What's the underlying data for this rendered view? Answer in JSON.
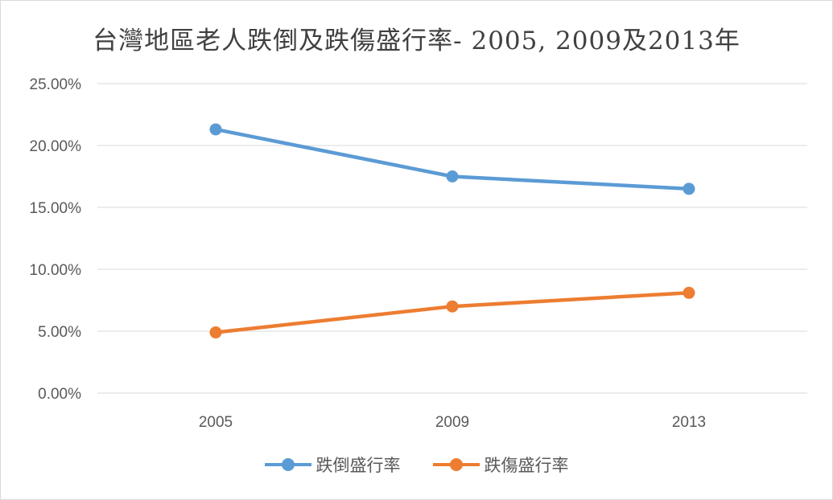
{
  "chart_data": {
    "type": "line",
    "title": "台灣地區老人跌倒及跌傷盛行率- 2005, 2009及2013年",
    "categories": [
      "2005",
      "2009",
      "2013"
    ],
    "series": [
      {
        "name": "跌倒盛行率",
        "values": [
          0.213,
          0.175,
          0.165
        ],
        "color": "#5b9bd5"
      },
      {
        "name": "跌傷盛行率",
        "values": [
          0.049,
          0.07,
          0.081
        ],
        "color": "#ed7d31"
      }
    ],
    "ylim": [
      0,
      0.25
    ],
    "yticks": [
      "0.00%",
      "5.00%",
      "10.00%",
      "15.00%",
      "20.00%",
      "25.00%"
    ],
    "grid": true,
    "legend_position": "bottom"
  }
}
